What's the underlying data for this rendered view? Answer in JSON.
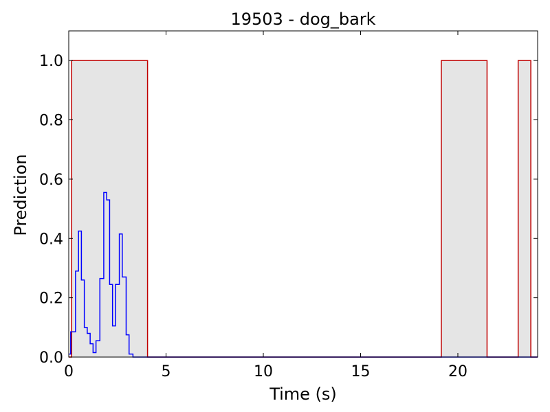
{
  "chart_data": {
    "type": "line",
    "title": "19503 - dog_bark",
    "xlabel": "Time (s)",
    "ylabel": "Prediction",
    "xlim": [
      0,
      24.1
    ],
    "ylim": [
      0,
      1.1
    ],
    "xticks": [
      0,
      5,
      10,
      15,
      20
    ],
    "xtick_labels": [
      "0",
      "5",
      "10",
      "15",
      "20"
    ],
    "yticks": [
      0,
      0.2,
      0.4,
      0.6,
      0.8,
      1.0
    ],
    "ytick_labels": [
      "0.0",
      "0.2",
      "0.4",
      "0.6",
      "0.8",
      "1.0"
    ],
    "grid": false,
    "regions": [
      {
        "start": 0.15,
        "end": 4.05
      },
      {
        "start": 19.15,
        "end": 21.5
      },
      {
        "start": 23.1,
        "end": 23.75
      }
    ],
    "series": [
      {
        "style": "step-gated",
        "color": "#c00000",
        "x": [
          0,
          0.15,
          0.15,
          4.05,
          4.05,
          19.15,
          19.15,
          21.5,
          21.5,
          23.1,
          23.1,
          23.75,
          23.75,
          24.1
        ],
        "values": [
          0,
          0,
          1.0,
          1.0,
          0,
          0,
          1.0,
          1.0,
          0,
          0,
          1.0,
          1.0,
          0,
          0
        ]
      },
      {
        "style": "step-prediction",
        "color": "#0000ff",
        "x": [
          0,
          0.1,
          0.1,
          0.25,
          0.25,
          0.35,
          0.35,
          0.5,
          0.5,
          0.65,
          0.65,
          0.8,
          0.8,
          0.95,
          0.95,
          1.1,
          1.1,
          1.25,
          1.25,
          1.4,
          1.4,
          1.6,
          1.6,
          1.8,
          1.8,
          1.95,
          1.95,
          2.1,
          2.1,
          2.25,
          2.25,
          2.4,
          2.4,
          2.6,
          2.6,
          2.75,
          2.75,
          2.95,
          2.95,
          3.1,
          3.1,
          3.3,
          3.3,
          3.5,
          3.5,
          3.65,
          3.65,
          3.8,
          3.8,
          24.1
        ],
        "values": [
          0.01,
          0.01,
          0.085,
          0.085,
          0.085,
          0.085,
          0.29,
          0.29,
          0.425,
          0.425,
          0.26,
          0.26,
          0.1,
          0.1,
          0.08,
          0.08,
          0.045,
          0.045,
          0.015,
          0.015,
          0.055,
          0.055,
          0.265,
          0.265,
          0.555,
          0.555,
          0.53,
          0.53,
          0.245,
          0.245,
          0.105,
          0.105,
          0.245,
          0.245,
          0.415,
          0.415,
          0.27,
          0.27,
          0.075,
          0.075,
          0.01,
          0.01,
          0.0,
          0.0,
          0.0,
          0.0,
          0.0,
          0.0,
          0.0,
          0.0
        ]
      }
    ],
    "colors": {
      "region_fill": "#e5e5e5",
      "gated": "#c00000",
      "prediction": "#0000ff",
      "axes": "#000000"
    }
  }
}
